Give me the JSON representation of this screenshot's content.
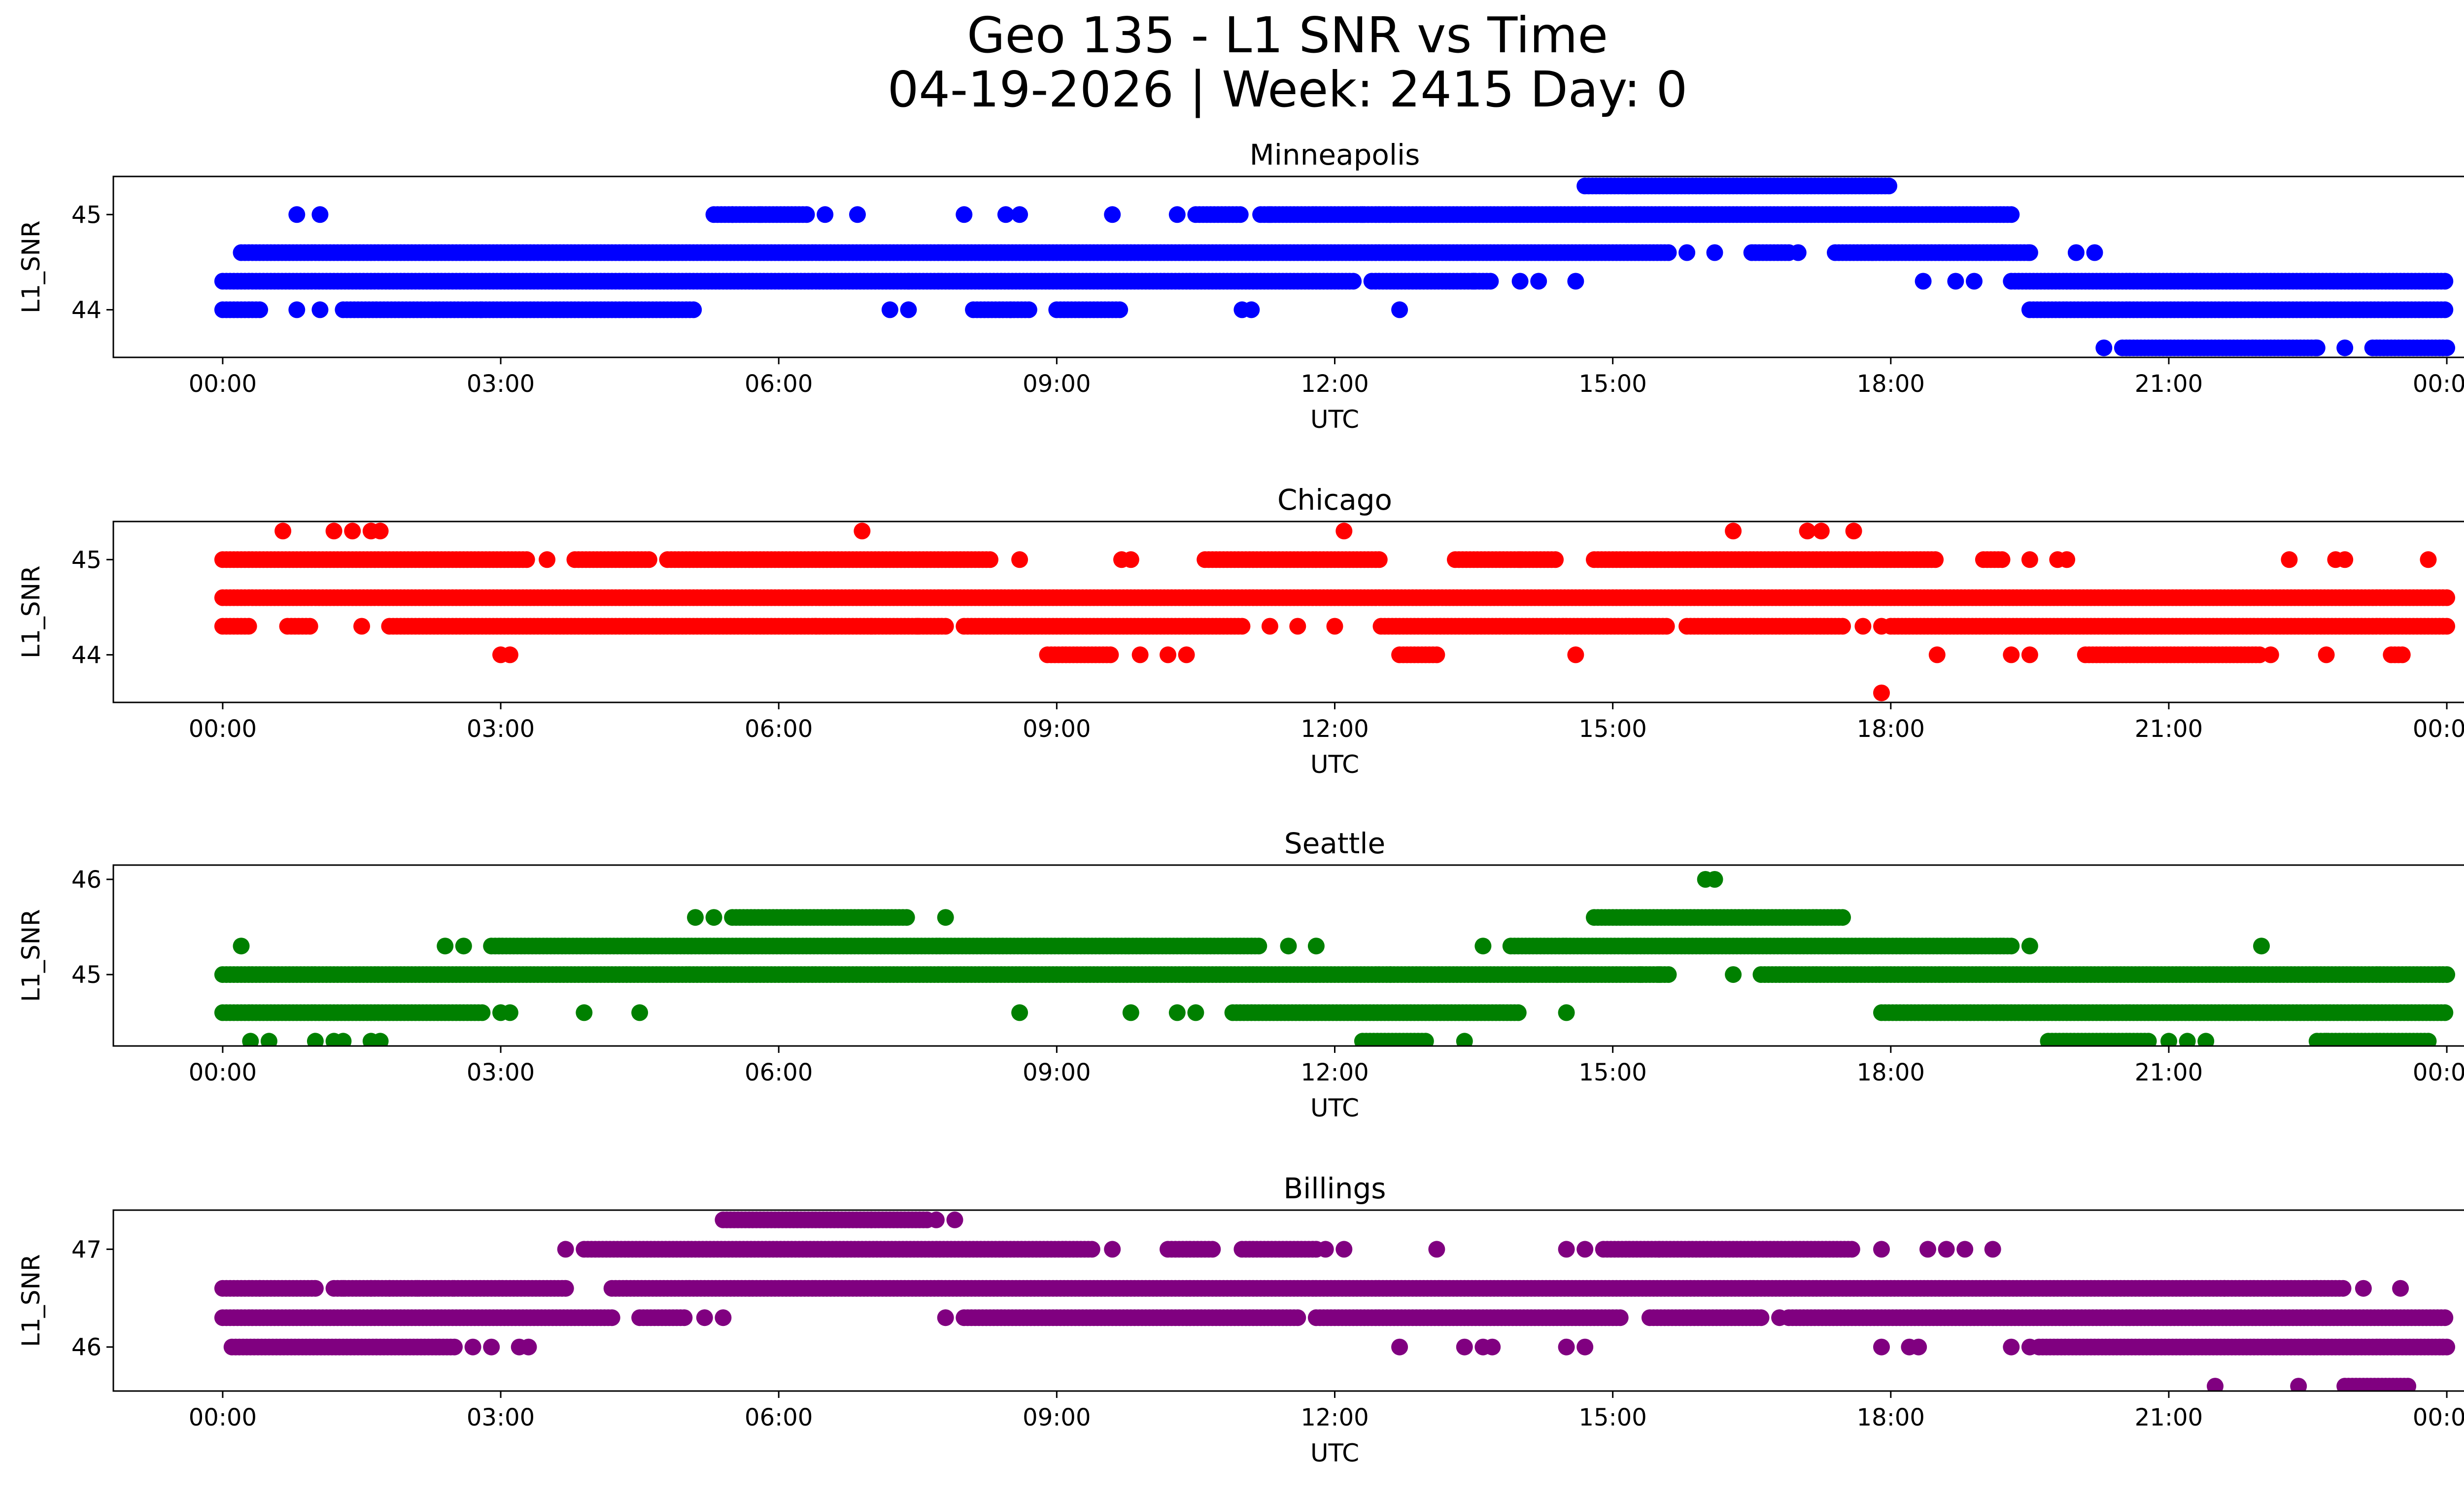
{
  "figure": {
    "title_line1": "Geo 135 - L1 SNR vs Time",
    "title_line2": "04-19-2026 | Week: 2415 Day: 0"
  },
  "chart_data": [
    {
      "type": "scatter",
      "title": "Minneapolis",
      "xlabel": "UTC",
      "ylabel": "L1_SNR",
      "color": "#0000ff",
      "x_ticks": [
        "00:00",
        "03:00",
        "06:00",
        "09:00",
        "12:00",
        "15:00",
        "18:00",
        "21:00",
        "00:00"
      ],
      "xlim_hours": [
        -1.18,
        25.18
      ],
      "y_ticks": [
        44,
        45
      ],
      "ylim": [
        43.5,
        45.4
      ],
      "grid": false,
      "rows": [
        {
          "y": 45.3,
          "segments": [
            [
              14.7,
              18.0
            ]
          ]
        },
        {
          "y": 45.0,
          "points": [
            0.8,
            1.05
          ],
          "segments": [
            [
              5.3,
              6.3
            ],
            [
              10.5,
              11.0
            ],
            [
              11.2,
              14.7
            ],
            [
              14.7,
              19.3
            ]
          ],
          "extra_points": [
            5.5,
            5.8,
            6.5,
            6.85,
            8.0,
            8.45,
            8.6,
            9.6,
            10.3,
            11.3,
            12.3,
            12.6
          ]
        },
        {
          "y": 44.6,
          "segments": [
            [
              0.2,
              15.6
            ],
            [
              16.5,
              16.9
            ],
            [
              17.4,
              17.8
            ],
            [
              17.8,
              19.5
            ]
          ],
          "extra_points": [
            15.8,
            16.1,
            17.0,
            19.2,
            19.5,
            20.0,
            20.2
          ]
        },
        {
          "y": 44.3,
          "segments": [
            [
              0.0,
              7.4
            ],
            [
              7.4,
              12.2
            ],
            [
              12.4,
              13.7
            ],
            [
              19.3,
              24.0
            ]
          ],
          "extra_points": [
            13.5,
            14.0,
            14.2,
            14.6,
            18.35,
            18.7,
            18.9
          ]
        },
        {
          "y": 44.0,
          "segments": [
            [
              0.0,
              0.4
            ],
            [
              1.3,
              2.8
            ],
            [
              2.8,
              5.1
            ],
            [
              8.1,
              8.7
            ],
            [
              9.0,
              9.7
            ],
            [
              19.5,
              24.0
            ]
          ],
          "extra_points": [
            0.8,
            1.05,
            7.2,
            7.4,
            8.5,
            11.0,
            11.1,
            12.7
          ]
        },
        {
          "y": 43.6,
          "segments": [
            [
              20.5,
              22.6
            ],
            [
              23.2,
              24.0
            ]
          ],
          "extra_points": [
            20.3,
            22.6,
            22.9
          ]
        }
      ]
    },
    {
      "type": "scatter",
      "title": "Chicago",
      "xlabel": "UTC",
      "ylabel": "L1_SNR",
      "color": "#ff0000",
      "x_ticks": [
        "00:00",
        "03:00",
        "06:00",
        "09:00",
        "12:00",
        "15:00",
        "18:00",
        "21:00",
        "00:00"
      ],
      "xlim_hours": [
        -1.18,
        25.18
      ],
      "y_ticks": [
        44,
        45
      ],
      "ylim": [
        43.5,
        45.4
      ],
      "grid": false,
      "rows": [
        {
          "y": 45.3,
          "points": [
            0.65,
            1.2,
            1.4,
            1.6,
            1.7,
            6.9,
            12.1,
            16.3,
            17.1,
            17.25,
            17.6
          ]
        },
        {
          "y": 45.0,
          "segments": [
            [
              0.0,
              3.3
            ],
            [
              3.8,
              4.6
            ],
            [
              4.8,
              8.3
            ],
            [
              10.6,
              12.5
            ],
            [
              13.3,
              14.4
            ],
            [
              14.8,
              18.5
            ],
            [
              19.0,
              19.2
            ]
          ],
          "extra_points": [
            3.5,
            8.6,
            9.7,
            9.8,
            14.0,
            19.5,
            19.8,
            19.9,
            22.3,
            22.8,
            22.9,
            23.8
          ]
        },
        {
          "y": 44.6,
          "segments": [
            [
              0.0,
              24.0
            ]
          ]
        },
        {
          "y": 44.3,
          "segments": [
            [
              0.0,
              0.3
            ],
            [
              0.7,
              0.95
            ],
            [
              1.8,
              6.4
            ],
            [
              6.4,
              7.8
            ],
            [
              8.0,
              11.0
            ],
            [
              12.5,
              15.6
            ],
            [
              15.8,
              17.5
            ],
            [
              18.0,
              24.0
            ]
          ],
          "extra_points": [
            1.5,
            7.0,
            7.5,
            11.3,
            11.6,
            12.0,
            17.7,
            17.9
          ]
        },
        {
          "y": 44.0,
          "segments": [
            [
              8.9,
              9.6
            ],
            [
              12.7,
              13.1
            ],
            [
              20.1,
              22.0
            ],
            [
              23.4,
              23.55
            ]
          ],
          "extra_points": [
            3.0,
            3.1,
            9.9,
            10.2,
            10.4,
            14.6,
            18.5,
            19.3,
            19.5,
            22.1,
            22.7
          ]
        },
        {
          "y": 43.6,
          "points": [
            17.9
          ]
        }
      ]
    },
    {
      "type": "scatter",
      "title": "Seattle",
      "xlabel": "UTC",
      "ylabel": "L1_SNR",
      "color": "#008000",
      "x_ticks": [
        "00:00",
        "03:00",
        "06:00",
        "09:00",
        "12:00",
        "15:00",
        "18:00",
        "21:00",
        "00:00"
      ],
      "xlim_hours": [
        -1.18,
        25.18
      ],
      "y_ticks": [
        45,
        46
      ],
      "ylim": [
        44.25,
        46.15
      ],
      "grid": false,
      "rows": [
        {
          "y": 46.0,
          "points": [
            16.0,
            16.1
          ]
        },
        {
          "y": 45.6,
          "segments": [
            [
              5.5,
              7.4
            ],
            [
              14.8,
              17.5
            ]
          ],
          "extra_points": [
            5.1,
            5.3,
            7.8
          ]
        },
        {
          "y": 45.3,
          "segments": [
            [
              2.9,
              11.2
            ],
            [
              13.9,
              19.3
            ]
          ],
          "extra_points": [
            0.2,
            2.4,
            2.6,
            11.5,
            11.8,
            13.6,
            19.5,
            22.0
          ]
        },
        {
          "y": 45.0,
          "segments": [
            [
              0.0,
              12.6
            ],
            [
              12.6,
              14.4
            ],
            [
              14.4,
              15.6
            ],
            [
              16.6,
              24.0
            ]
          ],
          "extra_points": [
            15.3,
            15.5,
            16.3
          ]
        },
        {
          "y": 44.6,
          "segments": [
            [
              0.0,
              2.8
            ],
            [
              10.9,
              14.0
            ],
            [
              17.9,
              24.0
            ]
          ],
          "extra_points": [
            3.0,
            3.1,
            3.9,
            4.5,
            8.6,
            9.8,
            10.3,
            10.5,
            14.5
          ]
        },
        {
          "y": 44.3,
          "segments": [
            [
              12.3,
              13.0
            ],
            [
              19.7,
              20.8
            ],
            [
              22.6,
              23.8
            ]
          ],
          "extra_points": [
            0.3,
            0.5,
            1.0,
            1.2,
            1.3,
            1.6,
            1.7,
            13.4,
            21.0,
            21.2,
            21.4,
            22.7
          ]
        }
      ]
    },
    {
      "type": "scatter",
      "title": "Billings",
      "xlabel": "UTC",
      "ylabel": "L1_SNR",
      "color": "#800080",
      "x_ticks": [
        "00:00",
        "03:00",
        "06:00",
        "09:00",
        "12:00",
        "15:00",
        "18:00",
        "21:00",
        "00:00"
      ],
      "xlim_hours": [
        -1.18,
        25.18
      ],
      "y_ticks": [
        46,
        47
      ],
      "ylim": [
        45.55,
        47.4
      ],
      "grid": false,
      "rows": [
        {
          "y": 47.3,
          "segments": [
            [
              5.4,
              7.0
            ],
            [
              7.0,
              7.6
            ]
          ],
          "extra_points": [
            7.7,
            7.9
          ]
        },
        {
          "y": 47.0,
          "segments": [
            [
              3.9,
              9.4
            ],
            [
              10.2,
              10.7
            ],
            [
              11.0,
              11.8
            ],
            [
              14.9,
              15.5
            ],
            [
              15.5,
              17.6
            ]
          ],
          "extra_points": [
            3.7,
            9.6,
            11.9,
            12.1,
            13.1,
            14.5,
            14.7,
            17.9,
            18.4,
            18.6,
            18.8,
            19.1
          ]
        },
        {
          "y": 46.6,
          "segments": [
            [
              0.0,
              1.0
            ],
            [
              1.2,
              2.5
            ],
            [
              2.5,
              3.7
            ],
            [
              4.2,
              21.6
            ],
            [
              21.6,
              22.9
            ]
          ],
          "extra_points": [
            0.4,
            1.3,
            1.6,
            1.8,
            2.1,
            23.1,
            23.5
          ]
        },
        {
          "y": 46.3,
          "segments": [
            [
              0.0,
              4.2
            ],
            [
              4.5,
              5.0
            ],
            [
              8.0,
              11.6
            ],
            [
              11.8,
              15.1
            ],
            [
              15.4,
              16.6
            ],
            [
              16.9,
              24.0
            ]
          ],
          "extra_points": [
            5.2,
            5.4,
            7.8,
            16.8
          ]
        },
        {
          "y": 46.0,
          "segments": [
            [
              0.1,
              2.5
            ],
            [
              19.6,
              24.0
            ]
          ],
          "extra_points": [
            2.7,
            2.9,
            3.2,
            3.3,
            12.7,
            13.4,
            13.6,
            13.7,
            14.5,
            14.7,
            17.9,
            18.2,
            18.3,
            19.3,
            19.5
          ]
        },
        {
          "y": 45.6,
          "segments": [
            [
              22.9,
              23.6
            ]
          ],
          "extra_points": [
            21.5,
            22.4
          ]
        }
      ]
    }
  ]
}
